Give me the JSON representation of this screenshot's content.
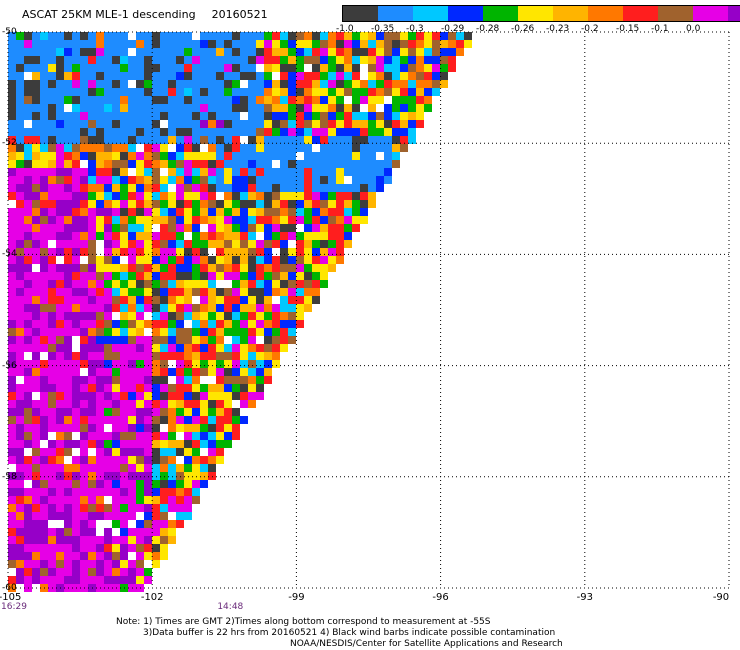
{
  "title": "ASCAT 25KM MLE-1 descending",
  "date": "20160521",
  "colorbar": {
    "colors": [
      "#3c3c3c",
      "#1e8cff",
      "#00c8ff",
      "#0028ff",
      "#00b400",
      "#ffe600",
      "#ffb400",
      "#ff7800",
      "#ff1e1e",
      "#a0622d",
      "#e600e6",
      "#9600c8"
    ],
    "labels": [
      "-1.0",
      "-0.35",
      "-0.3",
      "-0.29",
      "-0.28",
      "-0.26",
      "-0.23",
      "-0.2",
      "-0.15",
      "-0.1",
      "0.0"
    ]
  },
  "chart_data": {
    "type": "heatmap",
    "title": "ASCAT 25KM MLE-1 descending",
    "date": "20160521",
    "x_ticks": [
      "-105",
      "-102",
      "-99",
      "-96",
      "-93",
      "-90"
    ],
    "y_ticks": [
      "-50",
      "-52",
      "-54",
      "-56",
      "-58",
      "-60"
    ],
    "xlim": [
      -105,
      -90
    ],
    "ylim": [
      -60,
      -50
    ],
    "time_labels": [
      {
        "lon": -105,
        "time": "16:29"
      },
      {
        "lon": -100.5,
        "time": "14:48"
      }
    ],
    "grid": "dotted"
  },
  "notes": [
    "Note: 1) Times are GMT 2)Times along bottom correspond to measurement at -55S",
    "3)Data buffer is 22 hrs from 20160521 4) Black wind barbs indicate possible contamination",
    "NOAA/NESDIS/Center for Satellite Applications and Research"
  ]
}
